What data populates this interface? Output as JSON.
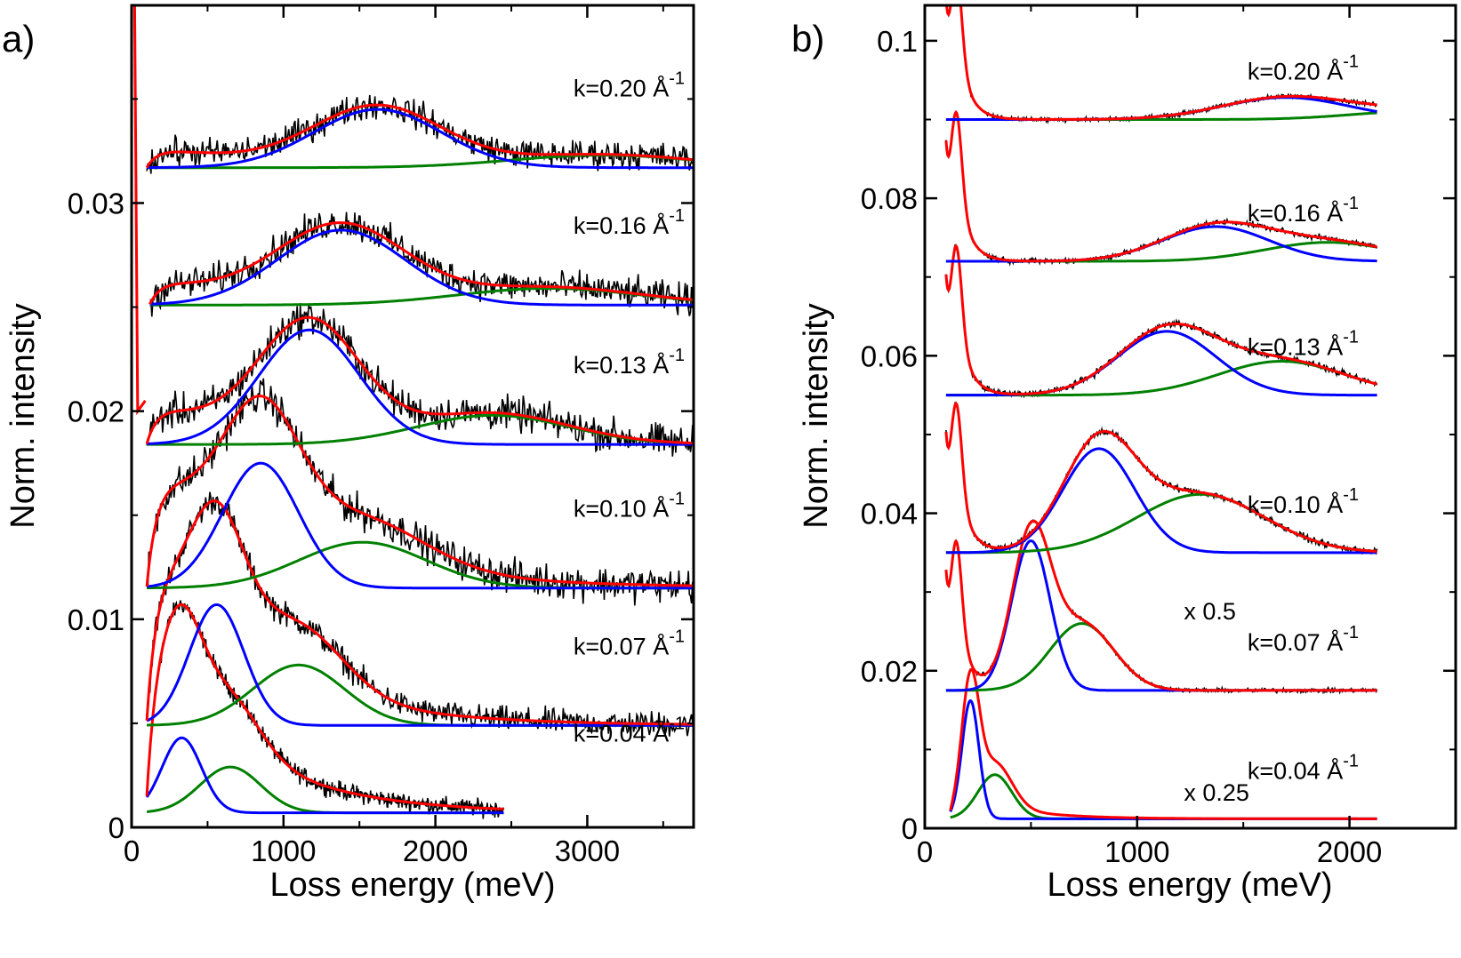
{
  "chart_data": [
    {
      "type": "line",
      "panel": "a)",
      "xlabel": "Loss energy (meV)",
      "ylabel": "Norm. intensity",
      "xlim": [
        0,
        3700
      ],
      "ylim": [
        0,
        0.0395
      ],
      "xticks": [
        0,
        1000,
        2000,
        3000
      ],
      "xtick_labels": [
        "0",
        "1000",
        "2000",
        "3000"
      ],
      "yticks": [
        0,
        0.01,
        0.02,
        0.03
      ],
      "ytick_labels": [
        "0",
        "0.01",
        "0.02",
        "0.03"
      ],
      "grid": false,
      "colors": {
        "data": "#000000",
        "fit": "#ff0000",
        "peak1": "#0000ff",
        "peak2": "#008000"
      },
      "curves": [
        {
          "k_label": "k=0.04 Å",
          "exp": "-1",
          "x_start": 100,
          "x_end": 2450,
          "baseline": 0.0007,
          "peak1": {
            "center": 330,
            "amp": 0.0036,
            "width": 130
          },
          "peak2": {
            "center": 650,
            "amp": 0.0022,
            "width": 200
          },
          "tail_amp": 0.009,
          "tail_decay": 600,
          "noise": 0.0006
        },
        {
          "k_label": "k=0.07 Å",
          "exp": "-1",
          "x_start": 100,
          "x_end": 3700,
          "baseline": 0.0049,
          "peak1": {
            "center": 560,
            "amp": 0.0058,
            "width": 180
          },
          "peak2": {
            "center": 1100,
            "amp": 0.0029,
            "width": 300
          },
          "tail_amp": 0.0085,
          "tail_decay": 700,
          "noise": 0.0009
        },
        {
          "k_label": "k=0.10 Å",
          "exp": "-1",
          "x_start": 100,
          "x_end": 3700,
          "baseline": 0.0115,
          "peak1": {
            "center": 850,
            "amp": 0.006,
            "width": 250
          },
          "peak2": {
            "center": 1520,
            "amp": 0.0022,
            "width": 420
          },
          "tail_amp": 0.006,
          "tail_decay": 900,
          "noise": 0.0012
        },
        {
          "k_label": "k=0.13 Å",
          "exp": "-1",
          "x_start": 100,
          "x_end": 3700,
          "baseline": 0.0184,
          "peak1": {
            "center": 1170,
            "amp": 0.0055,
            "width": 330
          },
          "peak2": {
            "center": 2380,
            "amp": 0.0014,
            "width": 500
          },
          "tail_amp": 0.002,
          "tail_decay": 800,
          "noise": 0.0012
        },
        {
          "k_label": "k=0.16 Å",
          "exp": "-1",
          "x_start": 120,
          "x_end": 3700,
          "baseline": 0.0251,
          "peak1": {
            "center": 1380,
            "amp": 0.0036,
            "width": 420
          },
          "peak2": {
            "center": 2750,
            "amp": 0.0008,
            "width": 600
          },
          "tail_amp": 0.0012,
          "tail_decay": 900,
          "noise": 0.0011
        },
        {
          "k_label": "k=0.20 Å",
          "exp": "-1",
          "x_start": 100,
          "x_end": 3700,
          "baseline": 0.0317,
          "peak1": {
            "center": 1620,
            "amp": 0.0028,
            "width": 420
          },
          "peak2": {
            "center": 3100,
            "amp": 0.0006,
            "width": 600
          },
          "tail_amp": 0.001,
          "tail_decay": 900,
          "noise": 0.001
        }
      ]
    },
    {
      "type": "line",
      "panel": "b)",
      "xlabel": "Loss energy (meV)",
      "ylabel": "Norm. intensity",
      "xlim": [
        0,
        2500
      ],
      "ylim": [
        0,
        0.1045
      ],
      "xticks": [
        0,
        1000,
        2000
      ],
      "xtick_labels": [
        "0",
        "1000",
        "2000"
      ],
      "yticks": [
        0,
        0.02,
        0.04,
        0.06,
        0.08,
        0.1
      ],
      "ytick_labels": [
        "0",
        "0.02",
        "0.04",
        "0.06",
        "0.08",
        "0.1"
      ],
      "grid": false,
      "colors": {
        "data": "#000000",
        "fit": "#ff0000",
        "peak1": "#0000ff",
        "peak2": "#008000"
      },
      "scale_annotations": [
        {
          "text": "x 0.25",
          "x": 1220,
          "y": 0.0035
        },
        {
          "text": "x 0.5",
          "x": 1220,
          "y": 0.0265
        }
      ],
      "curves": [
        {
          "k_label": "k=0.04 Å",
          "exp": "-1",
          "x_start": 120,
          "x_end": 2130,
          "baseline": 0.0012,
          "peak1": {
            "center": 215,
            "amp": 0.015,
            "width": 40
          },
          "peak2": {
            "center": 330,
            "amp": 0.0056,
            "width": 80
          },
          "tail_amp": 0.004,
          "tail_decay": 250,
          "noise": 0.0,
          "low_osc": false
        },
        {
          "k_label": "k=0.07 Å",
          "exp": "-1",
          "x_start": 100,
          "x_end": 2130,
          "baseline": 0.0175,
          "peak1": {
            "center": 500,
            "amp": 0.019,
            "width": 90
          },
          "peak2": {
            "center": 740,
            "amp": 0.0085,
            "width": 150
          },
          "tail_amp": 0.0,
          "tail_decay": 400,
          "noise": 0.0004,
          "low_osc": true
        },
        {
          "k_label": "k=0.10 Å",
          "exp": "-1",
          "x_start": 100,
          "x_end": 2130,
          "baseline": 0.035,
          "peak1": {
            "center": 820,
            "amp": 0.0132,
            "width": 170
          },
          "peak2": {
            "center": 1300,
            "amp": 0.0074,
            "width": 300
          },
          "tail_amp": 0.0,
          "tail_decay": 400,
          "noise": 0.0006,
          "low_osc": true
        },
        {
          "k_label": "k=0.13 Å",
          "exp": "-1",
          "x_start": 100,
          "x_end": 2130,
          "baseline": 0.055,
          "peak1": {
            "center": 1140,
            "amp": 0.0081,
            "width": 230
          },
          "peak2": {
            "center": 1680,
            "amp": 0.0043,
            "width": 300
          },
          "tail_amp": 0.0,
          "tail_decay": 400,
          "noise": 0.0006,
          "low_osc": true
        },
        {
          "k_label": "k=0.16 Å",
          "exp": "-1",
          "x_start": 100,
          "x_end": 2130,
          "baseline": 0.072,
          "peak1": {
            "center": 1370,
            "amp": 0.0044,
            "width": 250
          },
          "peak2": {
            "center": 1900,
            "amp": 0.0024,
            "width": 300
          },
          "tail_amp": 0.0,
          "tail_decay": 400,
          "noise": 0.0005,
          "low_osc": true
        },
        {
          "k_label": "k=0.20 Å",
          "exp": "-1",
          "x_start": 100,
          "x_end": 2130,
          "baseline": 0.09,
          "peak1": {
            "center": 1700,
            "amp": 0.0028,
            "width": 300
          },
          "peak2": {
            "center": 2300,
            "amp": 0.001,
            "width": 300
          },
          "tail_amp": 0.0,
          "tail_decay": 400,
          "noise": 0.0004,
          "low_osc": true
        }
      ]
    }
  ]
}
